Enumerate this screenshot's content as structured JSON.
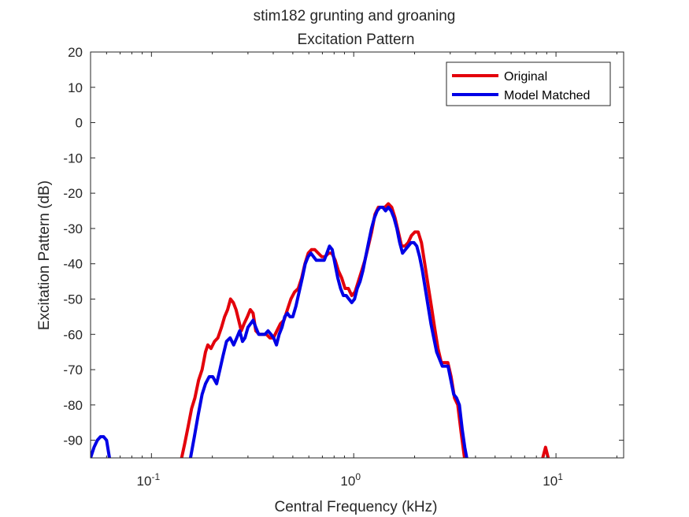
{
  "chart_data": {
    "type": "line",
    "title": "stim182 grunting and groaning",
    "subtitle": "Excitation Pattern",
    "xlabel": "Central Frequency (kHz)",
    "ylabel": "Excitation Pattern (dB)",
    "xscale": "log",
    "xlim": [
      0.05,
      21.6
    ],
    "ylim": [
      -95,
      20
    ],
    "xticks": [
      {
        "value": 0.1,
        "base": "10",
        "exp": "-1"
      },
      {
        "value": 1,
        "base": "10",
        "exp": "0"
      },
      {
        "value": 10,
        "base": "10",
        "exp": "1"
      }
    ],
    "yticks": [
      20,
      10,
      0,
      -10,
      -20,
      -30,
      -40,
      -50,
      -60,
      -70,
      -80,
      -90
    ],
    "grid": false,
    "legend_position": "top-right",
    "series": [
      {
        "name": "Original",
        "color": "#e3000b",
        "segments": [
          [
            [
              0.141,
              -95
            ],
            [
              0.146,
              -91
            ],
            [
              0.152,
              -86
            ],
            [
              0.158,
              -81
            ],
            [
              0.164,
              -78
            ],
            [
              0.171,
              -73
            ],
            [
              0.178,
              -70
            ],
            [
              0.185,
              -65
            ],
            [
              0.19,
              -63
            ],
            [
              0.197,
              -64
            ],
            [
              0.205,
              -62
            ],
            [
              0.213,
              -61
            ],
            [
              0.222,
              -58
            ],
            [
              0.23,
              -55
            ],
            [
              0.238,
              -53
            ],
            [
              0.246,
              -50
            ],
            [
              0.254,
              -51
            ],
            [
              0.262,
              -53
            ],
            [
              0.27,
              -56
            ],
            [
              0.278,
              -59
            ],
            [
              0.287,
              -57
            ],
            [
              0.298,
              -55
            ],
            [
              0.308,
              -53
            ],
            [
              0.318,
              -54
            ],
            [
              0.328,
              -59
            ],
            [
              0.341,
              -60
            ],
            [
              0.356,
              -60
            ],
            [
              0.37,
              -60
            ],
            [
              0.385,
              -61
            ],
            [
              0.401,
              -61
            ],
            [
              0.417,
              -59
            ],
            [
              0.434,
              -57
            ],
            [
              0.452,
              -56
            ],
            [
              0.47,
              -53
            ],
            [
              0.489,
              -50
            ],
            [
              0.51,
              -48
            ],
            [
              0.532,
              -47
            ],
            [
              0.553,
              -44
            ],
            [
              0.574,
              -40
            ],
            [
              0.596,
              -37
            ],
            [
              0.618,
              -36
            ],
            [
              0.642,
              -36
            ],
            [
              0.668,
              -37
            ],
            [
              0.695,
              -38
            ],
            [
              0.722,
              -38
            ],
            [
              0.751,
              -37
            ],
            [
              0.78,
              -37
            ],
            [
              0.81,
              -39
            ],
            [
              0.84,
              -42
            ],
            [
              0.872,
              -44
            ],
            [
              0.906,
              -47
            ],
            [
              0.941,
              -47
            ],
            [
              0.978,
              -49
            ],
            [
              1.015,
              -48
            ],
            [
              1.054,
              -45
            ],
            [
              1.095,
              -42
            ],
            [
              1.136,
              -39
            ],
            [
              1.181,
              -35
            ],
            [
              1.226,
              -31
            ],
            [
              1.274,
              -26
            ],
            [
              1.323,
              -24
            ],
            [
              1.374,
              -24
            ],
            [
              1.426,
              -24
            ],
            [
              1.483,
              -23
            ],
            [
              1.541,
              -24
            ],
            [
              1.601,
              -27
            ],
            [
              1.662,
              -31
            ],
            [
              1.725,
              -35
            ],
            [
              1.791,
              -35
            ],
            [
              1.859,
              -34
            ],
            [
              1.929,
              -32
            ],
            [
              2.005,
              -31
            ],
            [
              2.082,
              -31
            ],
            [
              2.162,
              -34
            ],
            [
              2.245,
              -40
            ],
            [
              2.33,
              -46
            ],
            [
              2.42,
              -52
            ],
            [
              2.51,
              -58
            ],
            [
              2.61,
              -64
            ],
            [
              2.71,
              -68
            ],
            [
              2.81,
              -68
            ],
            [
              2.92,
              -68
            ],
            [
              3.03,
              -72
            ],
            [
              3.15,
              -78
            ],
            [
              3.27,
              -80
            ],
            [
              3.4,
              -88
            ],
            [
              3.53,
              -95
            ]
          ],
          [
            [
              8.6,
              -95
            ],
            [
              8.88,
              -92
            ],
            [
              9.15,
              -95
            ]
          ]
        ]
      },
      {
        "name": "Model Matched",
        "color": "#0000e6",
        "segments": [
          [
            [
              0.05,
              -95
            ],
            [
              0.052,
              -92
            ],
            [
              0.054,
              -90
            ],
            [
              0.056,
              -89
            ],
            [
              0.058,
              -89
            ],
            [
              0.06,
              -90
            ],
            [
              0.062,
              -95
            ]
          ],
          [
            [
              0.156,
              -95
            ],
            [
              0.163,
              -89
            ],
            [
              0.17,
              -83
            ],
            [
              0.178,
              -77
            ],
            [
              0.185,
              -74
            ],
            [
              0.193,
              -72
            ],
            [
              0.201,
              -72
            ],
            [
              0.21,
              -74
            ],
            [
              0.218,
              -70
            ],
            [
              0.226,
              -66
            ],
            [
              0.235,
              -62
            ],
            [
              0.245,
              -61
            ],
            [
              0.255,
              -63
            ],
            [
              0.264,
              -61
            ],
            [
              0.273,
              -59
            ],
            [
              0.282,
              -62
            ],
            [
              0.29,
              -61
            ],
            [
              0.3,
              -58
            ],
            [
              0.309,
              -57
            ],
            [
              0.318,
              -56
            ],
            [
              0.328,
              -58
            ],
            [
              0.339,
              -60
            ],
            [
              0.351,
              -60
            ],
            [
              0.364,
              -60
            ],
            [
              0.377,
              -59
            ],
            [
              0.39,
              -60
            ],
            [
              0.402,
              -61
            ],
            [
              0.415,
              -63
            ],
            [
              0.428,
              -60
            ],
            [
              0.442,
              -58
            ],
            [
              0.456,
              -55
            ],
            [
              0.47,
              -54
            ],
            [
              0.484,
              -55
            ],
            [
              0.5,
              -55
            ],
            [
              0.518,
              -52
            ],
            [
              0.537,
              -48
            ],
            [
              0.557,
              -44
            ],
            [
              0.576,
              -40
            ],
            [
              0.595,
              -38
            ],
            [
              0.614,
              -37
            ],
            [
              0.633,
              -38
            ],
            [
              0.653,
              -39
            ],
            [
              0.673,
              -39
            ],
            [
              0.694,
              -39
            ],
            [
              0.715,
              -39
            ],
            [
              0.737,
              -37
            ],
            [
              0.759,
              -35
            ],
            [
              0.783,
              -36
            ],
            [
              0.808,
              -40
            ],
            [
              0.834,
              -44
            ],
            [
              0.861,
              -47
            ],
            [
              0.889,
              -49
            ],
            [
              0.918,
              -49
            ],
            [
              0.947,
              -50
            ],
            [
              0.978,
              -51
            ],
            [
              1.009,
              -50
            ],
            [
              1.041,
              -47
            ],
            [
              1.075,
              -45
            ],
            [
              1.11,
              -42
            ],
            [
              1.146,
              -38
            ],
            [
              1.184,
              -34
            ],
            [
              1.224,
              -30
            ],
            [
              1.265,
              -27
            ],
            [
              1.306,
              -25
            ],
            [
              1.349,
              -24
            ],
            [
              1.392,
              -24
            ],
            [
              1.437,
              -25
            ],
            [
              1.484,
              -24
            ],
            [
              1.532,
              -25
            ],
            [
              1.582,
              -27
            ],
            [
              1.634,
              -30
            ],
            [
              1.688,
              -34
            ],
            [
              1.743,
              -37
            ],
            [
              1.8,
              -36
            ],
            [
              1.86,
              -35
            ],
            [
              1.922,
              -34
            ],
            [
              1.985,
              -34
            ],
            [
              2.05,
              -35
            ],
            [
              2.117,
              -38
            ],
            [
              2.186,
              -42
            ],
            [
              2.258,
              -47
            ],
            [
              2.332,
              -52
            ],
            [
              2.409,
              -57
            ],
            [
              2.488,
              -61
            ],
            [
              2.57,
              -65
            ],
            [
              2.655,
              -67
            ],
            [
              2.742,
              -69
            ],
            [
              2.833,
              -69
            ],
            [
              2.926,
              -69
            ],
            [
              3.022,
              -73
            ],
            [
              3.121,
              -77
            ],
            [
              3.224,
              -78
            ],
            [
              3.33,
              -80
            ],
            [
              3.44,
              -87
            ],
            [
              3.54,
              -92
            ],
            [
              3.62,
              -95
            ]
          ]
        ]
      }
    ]
  }
}
